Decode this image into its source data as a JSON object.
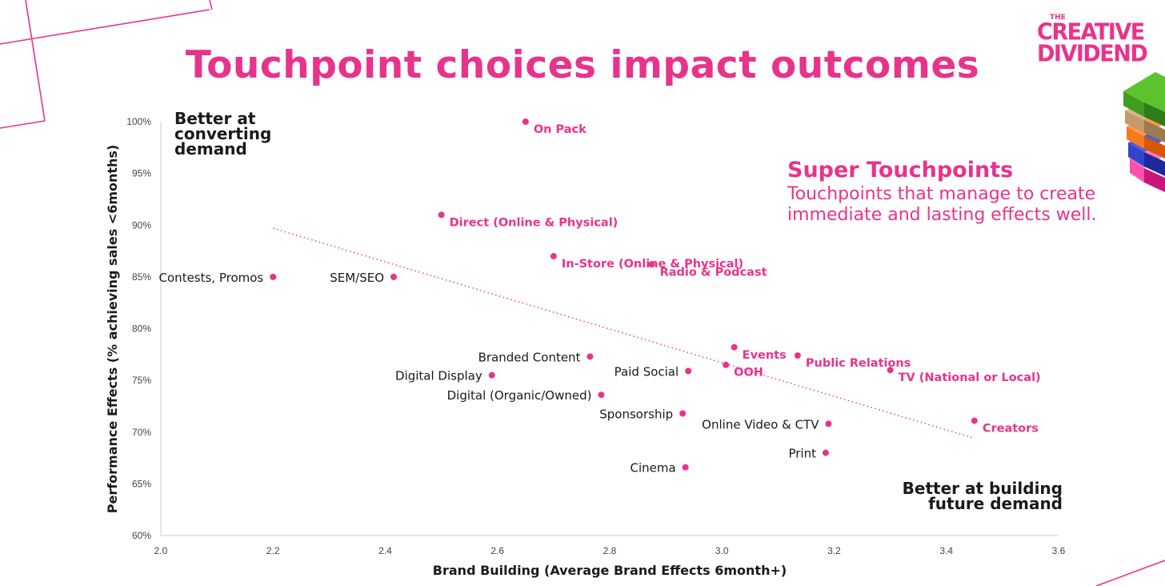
{
  "header": {
    "title": "Touchpoint choices impact outcomes"
  },
  "logo": {
    "small": "THE",
    "line1": "CREATIVE",
    "line2": "DIVIDEND"
  },
  "annotations": {
    "top_left": "Better at converting demand",
    "bottom_right": "Better at building future demand",
    "super_heading": "Super Touchpoints",
    "super_description": "Touchpoints that manage to create immediate and lasting effects well."
  },
  "colors": {
    "accent": "#e8338c",
    "label_dark": "#1a1a1a",
    "axis": "#cccccc"
  },
  "chart_data": {
    "type": "scatter",
    "xlabel": "Brand Building (Average Brand Effects 6month+)",
    "ylabel": "Performance Effects (% achieving sales <6months)",
    "xlim": [
      2.0,
      3.6
    ],
    "ylim": [
      60,
      100
    ],
    "x_ticks": [
      "2.0",
      "2.2",
      "2.4",
      "2.6",
      "2.8",
      "3.0",
      "3.2",
      "3.4",
      "3.6"
    ],
    "y_ticks": [
      "60%",
      "65%",
      "70%",
      "75%",
      "80%",
      "85%",
      "90%",
      "95%",
      "100%"
    ],
    "grid": false,
    "trendline": {
      "style": "dotted",
      "from": [
        2.2,
        89.7
      ],
      "to": [
        3.45,
        69.4
      ]
    },
    "points": [
      {
        "label": "On Pack",
        "x": 2.65,
        "y": 100.0,
        "super": true,
        "label_side": "right"
      },
      {
        "label": "Direct (Online & Physical)",
        "x": 2.5,
        "y": 91.0,
        "super": true,
        "label_side": "right"
      },
      {
        "label": "In-Store (Online & Physical)",
        "x": 2.7,
        "y": 87.0,
        "super": true,
        "label_side": "right"
      },
      {
        "label": "Radio & Podcast",
        "x": 2.875,
        "y": 86.2,
        "super": true,
        "label_side": "right"
      },
      {
        "label": "Contests, Promos",
        "x": 2.2,
        "y": 85.0,
        "super": false,
        "label_side": "left"
      },
      {
        "label": "SEM/SEO",
        "x": 2.415,
        "y": 85.0,
        "super": false,
        "label_side": "left"
      },
      {
        "label": "Events",
        "x": 3.022,
        "y": 78.2,
        "super": true,
        "label_side": "right"
      },
      {
        "label": "Public Relations",
        "x": 3.135,
        "y": 77.4,
        "super": true,
        "label_side": "right"
      },
      {
        "label": "Branded Content",
        "x": 2.765,
        "y": 77.3,
        "super": false,
        "label_side": "left"
      },
      {
        "label": "OOH",
        "x": 3.007,
        "y": 76.5,
        "super": true,
        "label_side": "right"
      },
      {
        "label": "TV (National or Local)",
        "x": 3.3,
        "y": 76.0,
        "super": true,
        "label_side": "right"
      },
      {
        "label": "Paid Social",
        "x": 2.94,
        "y": 75.9,
        "super": false,
        "label_side": "left"
      },
      {
        "label": "Digital Display",
        "x": 2.59,
        "y": 75.5,
        "super": false,
        "label_side": "left"
      },
      {
        "label": "Digital (Organic/Owned)",
        "x": 2.785,
        "y": 73.6,
        "super": false,
        "label_side": "left"
      },
      {
        "label": "Sponsorship",
        "x": 2.93,
        "y": 71.8,
        "super": false,
        "label_side": "left"
      },
      {
        "label": "Creators",
        "x": 3.45,
        "y": 71.1,
        "super": true,
        "label_side": "right"
      },
      {
        "label": "Online Video & CTV",
        "x": 3.19,
        "y": 70.8,
        "super": false,
        "label_side": "left"
      },
      {
        "label": "Print",
        "x": 3.185,
        "y": 68.0,
        "super": false,
        "label_side": "left"
      },
      {
        "label": "Cinema",
        "x": 2.935,
        "y": 66.6,
        "super": false,
        "label_side": "left"
      }
    ]
  }
}
